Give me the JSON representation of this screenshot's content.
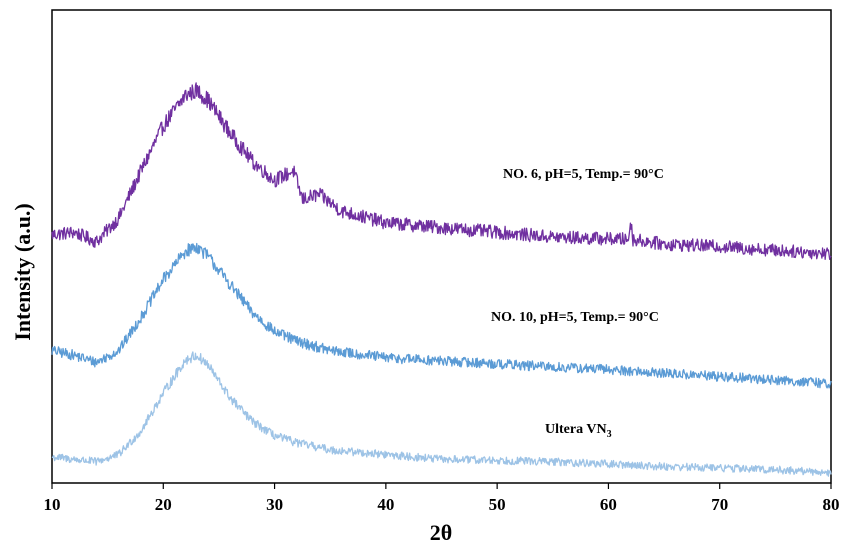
{
  "chart_data": {
    "type": "line",
    "xlabel": "2θ",
    "ylabel": "Intensity (a.u.)",
    "xlim": [
      10,
      80
    ],
    "xticks": [
      10,
      20,
      30,
      40,
      50,
      60,
      70,
      80
    ],
    "yticks": "none",
    "grid": false,
    "legend": "inline labels",
    "series": [
      {
        "name": "NO. 6, pH=5, Temp.= 90°C",
        "label_sub": "",
        "color": "#7030a0",
        "points": [
          [
            10,
            0.525
          ],
          [
            12,
            0.53
          ],
          [
            14,
            0.51
          ],
          [
            16,
            0.56
          ],
          [
            18,
            0.66
          ],
          [
            20,
            0.755
          ],
          [
            22,
            0.82
          ],
          [
            23,
            0.83
          ],
          [
            24,
            0.81
          ],
          [
            26,
            0.74
          ],
          [
            28,
            0.68
          ],
          [
            30,
            0.64
          ],
          [
            31.7,
            0.66
          ],
          [
            32.5,
            0.6
          ],
          [
            34,
            0.61
          ],
          [
            36,
            0.575
          ],
          [
            40,
            0.55
          ],
          [
            45,
            0.54
          ],
          [
            50,
            0.53
          ],
          [
            55,
            0.52
          ],
          [
            61.8,
            0.515
          ],
          [
            62,
            0.555
          ],
          [
            62.2,
            0.515
          ],
          [
            65,
            0.505
          ],
          [
            70,
            0.5
          ],
          [
            75,
            0.492
          ],
          [
            80,
            0.485
          ]
        ]
      },
      {
        "name": "NO. 10, pH=5, Temp.= 90°C",
        "label_sub": "",
        "color": "#5b9bd5",
        "points": [
          [
            10,
            0.28
          ],
          [
            12,
            0.27
          ],
          [
            14,
            0.255
          ],
          [
            16,
            0.28
          ],
          [
            18,
            0.35
          ],
          [
            20,
            0.43
          ],
          [
            22,
            0.49
          ],
          [
            23,
            0.5
          ],
          [
            24,
            0.48
          ],
          [
            26,
            0.42
          ],
          [
            28,
            0.36
          ],
          [
            30,
            0.32
          ],
          [
            32,
            0.3
          ],
          [
            35,
            0.28
          ],
          [
            40,
            0.265
          ],
          [
            45,
            0.258
          ],
          [
            50,
            0.252
          ],
          [
            55,
            0.245
          ],
          [
            60,
            0.24
          ],
          [
            65,
            0.232
          ],
          [
            70,
            0.225
          ],
          [
            75,
            0.218
          ],
          [
            80,
            0.21
          ]
        ]
      },
      {
        "name": "Ultera VN",
        "label_sub": "3",
        "color": "#9dc3e6",
        "points": [
          [
            10,
            0.055
          ],
          [
            12,
            0.05
          ],
          [
            14,
            0.045
          ],
          [
            16,
            0.06
          ],
          [
            18,
            0.11
          ],
          [
            20,
            0.19
          ],
          [
            22,
            0.26
          ],
          [
            23,
            0.27
          ],
          [
            24,
            0.25
          ],
          [
            26,
            0.18
          ],
          [
            28,
            0.13
          ],
          [
            30,
            0.1
          ],
          [
            32,
            0.085
          ],
          [
            35,
            0.07
          ],
          [
            40,
            0.06
          ],
          [
            45,
            0.05
          ],
          [
            50,
            0.048
          ],
          [
            55,
            0.045
          ],
          [
            60,
            0.04
          ],
          [
            65,
            0.035
          ],
          [
            70,
            0.032
          ],
          [
            75,
            0.028
          ],
          [
            80,
            0.022
          ]
        ]
      }
    ]
  }
}
